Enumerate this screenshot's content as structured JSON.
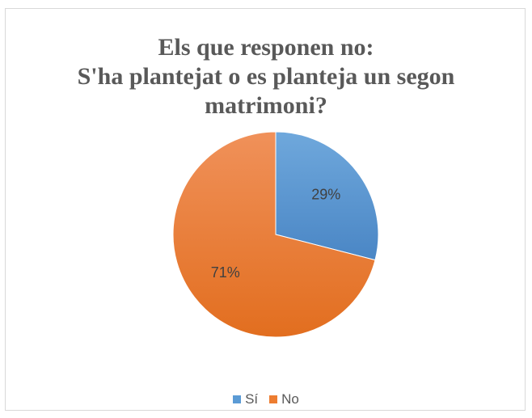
{
  "chart_data": {
    "type": "pie",
    "title_lines": [
      "Els que responen no:",
      "S'ha plantejat o es planteja un segon",
      "matrimoni?"
    ],
    "categories": [
      "Sí",
      "No"
    ],
    "values": [
      29,
      71
    ],
    "labels": [
      "29%",
      "71%"
    ],
    "colors": [
      "#5b9bd5",
      "#ed7d31"
    ],
    "legend_position": "bottom"
  }
}
